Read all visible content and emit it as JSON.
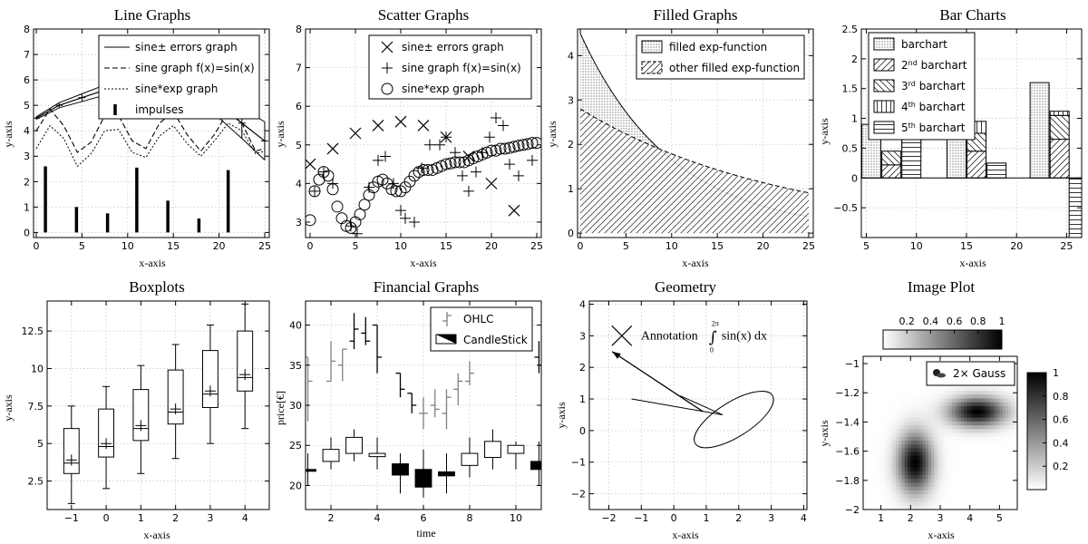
{
  "chart_data": [
    {
      "id": "p1",
      "type": "line",
      "title": "Line Graphs",
      "xlabel": "x-axis",
      "ylabel": "y-axis",
      "xlim": [
        -0.3,
        25.5
      ],
      "ylim": [
        -0.2,
        8
      ],
      "xticks": [
        0,
        5,
        10,
        15,
        20,
        25
      ],
      "yticks": [
        0,
        1,
        2,
        3,
        4,
        5,
        6,
        7,
        8
      ],
      "legend": {
        "placement": "top-right",
        "entries": [
          "sine± errors graph",
          "sine graph f(x)=sin(x)",
          "sine*exp graph",
          "impulses"
        ]
      },
      "series": [
        {
          "name": "sine± errors graph",
          "x": [
            0,
            2.5,
            5,
            7.5,
            10,
            12.5,
            15,
            17.5,
            20,
            22.5,
            25
          ],
          "y": [
            4.5,
            5.0,
            5.3,
            5.6,
            5.8,
            5.4,
            5.9,
            5.6,
            5.0,
            4.3,
            3.6
          ],
          "err": [
            0.05,
            0.1,
            0.15,
            0.2,
            0.25,
            0.3,
            0.35,
            0.4,
            0.5,
            0.6,
            0.75
          ]
        },
        {
          "name": "sine graph f(x)=sin(x)",
          "x": [
            0,
            1.5,
            3,
            4.5,
            6,
            7.5,
            9,
            10.5,
            12,
            13.5,
            15,
            16.5,
            18,
            19.5,
            21,
            22.5,
            24,
            25
          ],
          "y": [
            4.0,
            4.85,
            4.2,
            3.15,
            3.55,
            4.6,
            4.6,
            3.6,
            3.3,
            4.3,
            4.75,
            3.85,
            3.2,
            3.85,
            4.75,
            4.3,
            3.2,
            3.3
          ]
        },
        {
          "name": "sine*exp graph",
          "x": [
            0,
            1.5,
            3,
            4.5,
            6,
            7.5,
            9,
            10.5,
            12,
            13.5,
            15,
            16.5,
            18,
            19.5,
            21,
            22.5,
            24,
            25
          ],
          "y": [
            3.3,
            4.2,
            3.7,
            2.6,
            3.1,
            4.0,
            4.05,
            3.15,
            2.95,
            3.8,
            4.2,
            3.5,
            3.0,
            3.6,
            4.3,
            4.0,
            3.1,
            3.2
          ]
        },
        {
          "name": "impulses",
          "x": [
            1,
            4.4,
            7.8,
            11,
            14.4,
            17.8,
            21
          ],
          "y": [
            2.6,
            1.0,
            0.75,
            2.55,
            1.25,
            0.55,
            2.45
          ]
        }
      ]
    },
    {
      "id": "p2",
      "type": "scatter",
      "title": "Scatter Graphs",
      "xlabel": "x-axis",
      "ylabel": "y-axis",
      "xlim": [
        -0.5,
        25.5
      ],
      "ylim": [
        2.6,
        8
      ],
      "xticks": [
        0,
        5,
        10,
        15,
        20,
        25
      ],
      "yticks": [
        3,
        4,
        5,
        6,
        7,
        8
      ],
      "legend": {
        "placement": "top-right",
        "entries": [
          "sine± errors graph",
          "sine graph f(x)=sin(x)",
          "sine*exp graph"
        ]
      },
      "series": [
        {
          "name": "sine± errors graph",
          "marker": "x",
          "x": [
            0,
            2.5,
            5,
            7.5,
            10,
            12.5,
            15,
            17.5,
            20,
            22.5
          ],
          "y": [
            4.5,
            4.9,
            5.3,
            5.5,
            5.6,
            5.5,
            5.2,
            4.7,
            4.0,
            3.3
          ]
        },
        {
          "name": "sine graph f(x)=sin(x)",
          "marker": "+",
          "x": [
            0.5,
            1.5,
            2.5,
            4.5,
            5.2,
            6.5,
            7.5,
            8.3,
            9.2,
            10.0,
            10.5,
            11.5,
            12.3,
            13.2,
            14.3,
            15.0,
            16.0,
            16.8,
            17.5,
            18.3,
            19.0,
            19.8,
            20.5,
            21.3,
            22.0,
            23.0,
            24.5
          ],
          "y": [
            3.8,
            4.3,
            4.0,
            2.9,
            2.7,
            3.9,
            4.6,
            4.7,
            4.0,
            3.3,
            3.1,
            3.0,
            4.4,
            5.0,
            5.0,
            5.2,
            4.8,
            4.2,
            3.8,
            4.3,
            4.8,
            5.2,
            5.7,
            5.5,
            4.5,
            4.2,
            4.6
          ]
        },
        {
          "name": "sine*exp graph",
          "marker": "o",
          "x": [
            0,
            0.5,
            1,
            1.5,
            2,
            2.5,
            3,
            3.5,
            4,
            4.5,
            5,
            5.5,
            6,
            6.5,
            7,
            7.5,
            8,
            8.5,
            9,
            9.5,
            10,
            10.5,
            11,
            11.5,
            12,
            12.5,
            13,
            13.5,
            14,
            14.5,
            15,
            15.5,
            16,
            16.5,
            17,
            17.5,
            18,
            18.5,
            19,
            19.5,
            20,
            20.5,
            21,
            21.5,
            22,
            22.5,
            23,
            23.5,
            24,
            24.5,
            25
          ],
          "y": [
            3.05,
            3.8,
            4.1,
            4.3,
            4.2,
            3.85,
            3.4,
            3.1,
            2.9,
            2.85,
            3.0,
            3.2,
            3.45,
            3.7,
            3.9,
            4.05,
            4.1,
            4.0,
            3.85,
            3.8,
            3.8,
            3.9,
            4.05,
            4.2,
            4.3,
            4.35,
            4.35,
            4.35,
            4.4,
            4.45,
            4.5,
            4.52,
            4.55,
            4.55,
            4.55,
            4.6,
            4.65,
            4.7,
            4.75,
            4.8,
            4.85,
            4.85,
            4.9,
            4.9,
            4.92,
            4.95,
            4.98,
            5.0,
            5.02,
            5.05,
            5.05
          ]
        }
      ]
    },
    {
      "id": "p3",
      "type": "area",
      "title": "Filled Graphs",
      "xlabel": "x-axis",
      "ylabel": "y-axis",
      "xlim": [
        -0.3,
        25.5
      ],
      "ylim": [
        -0.1,
        4.6
      ],
      "xticks": [
        0,
        5,
        10,
        15,
        20,
        25
      ],
      "yticks": [
        0,
        1,
        2,
        3,
        4
      ],
      "legend": {
        "placement": "top-right",
        "entries": [
          "filled exp-function",
          "other filled exp-function"
        ]
      },
      "series": [
        {
          "name": "filled exp-function",
          "fill": "dots",
          "a": 4.5,
          "k": 0.1
        },
        {
          "name": "other filled exp-function",
          "fill": "hatch",
          "a": 2.8,
          "k": 0.045
        }
      ]
    },
    {
      "id": "p4",
      "type": "bar",
      "title": "Bar Charts",
      "xlabel": "x-axis",
      "ylabel": "y-axis",
      "xlim": [
        4.5,
        26.5
      ],
      "ylim": [
        -1.0,
        2.5
      ],
      "xticks": [
        5,
        10,
        15,
        20,
        25
      ],
      "yticks": [
        -0.5,
        0,
        0.5,
        1,
        1.5,
        2,
        2.5
      ],
      "legend": {
        "placement": "top-left",
        "entries": [
          "barchart",
          "2nd barchart",
          "3rd barchart",
          "4th barchart",
          "5th barchart"
        ]
      },
      "series": [
        {
          "name": "barchart",
          "pattern": "dots",
          "x": [
            5.5,
            14,
            22.3
          ],
          "bottom": [
            0,
            0,
            0
          ],
          "top": [
            0.9,
            0.85,
            1.6
          ]
        },
        {
          "name": "2nd barchart",
          "pattern": "fwd",
          "x": [
            7.5,
            16,
            24.3
          ],
          "bottom": [
            0,
            0,
            0
          ],
          "top": [
            0.22,
            0.45,
            0.65
          ]
        },
        {
          "name": "3rd barchart",
          "pattern": "back",
          "x": [
            7.5,
            16,
            24.3
          ],
          "bottom": [
            0.22,
            0.45,
            0.65
          ],
          "top": [
            0.45,
            0.75,
            1.05
          ]
        },
        {
          "name": "4th barchart",
          "pattern": "vert",
          "x": [
            9.5,
            16,
            24.3
          ],
          "bottom": [
            0.45,
            0.75,
            1.05
          ],
          "top": [
            0.75,
            0.95,
            1.12
          ]
        },
        {
          "name": "5th barchart",
          "pattern": "horiz",
          "x": [
            9.5,
            18,
            26.2
          ],
          "bottom": [
            0,
            0,
            0
          ],
          "top": [
            0.7,
            0.25,
            -1.0
          ]
        }
      ]
    },
    {
      "id": "p5",
      "type": "boxplot",
      "title": "Boxplots",
      "xlabel": "x-axis",
      "ylabel": "y-axis",
      "xlim": [
        -1.7,
        4.7
      ],
      "ylim": [
        0.6,
        14.5
      ],
      "xticks": [
        -1,
        0,
        1,
        2,
        3,
        4
      ],
      "yticks": [
        2.5,
        5,
        7.5,
        10,
        12.5
      ],
      "boxes": [
        {
          "x": -1,
          "min": 1.0,
          "q1": 3.0,
          "median": 3.7,
          "mean": 3.9,
          "q3": 6.0,
          "max": 7.5
        },
        {
          "x": 0,
          "min": 2.0,
          "q1": 4.1,
          "median": 4.8,
          "mean": 5.0,
          "q3": 7.3,
          "max": 8.8
        },
        {
          "x": 1,
          "min": 3.0,
          "q1": 5.2,
          "median": 6.0,
          "mean": 6.2,
          "q3": 8.6,
          "max": 10.2
        },
        {
          "x": 2,
          "min": 4.0,
          "q1": 6.3,
          "median": 7.1,
          "mean": 7.3,
          "q3": 9.9,
          "max": 11.6
        },
        {
          "x": 3,
          "min": 5.0,
          "q1": 7.4,
          "median": 8.3,
          "mean": 8.5,
          "q3": 11.2,
          "max": 12.9
        },
        {
          "x": 4,
          "min": 6.0,
          "q1": 8.5,
          "median": 9.4,
          "mean": 9.6,
          "q3": 12.5,
          "max": 14.3
        }
      ]
    },
    {
      "id": "p6",
      "type": "financial",
      "title": "Financial Graphs",
      "xlabel": "time",
      "ylabel": "price[€]",
      "xlim": [
        0.9,
        11.1
      ],
      "ylim": [
        17,
        43
      ],
      "xticks": [
        2,
        4,
        6,
        8,
        10
      ],
      "yticks": [
        20,
        25,
        30,
        35,
        40
      ],
      "legend": {
        "placement": "top-right",
        "entries": [
          "OHLC",
          "CandleStick"
        ]
      },
      "ohlc": [
        {
          "t": 1,
          "o": 36,
          "h": 36,
          "l": 28,
          "c": 33,
          "color": "#808080"
        },
        {
          "t": 2,
          "o": 33,
          "h": 38,
          "l": 33,
          "c": 35.5,
          "color": "#808080"
        },
        {
          "t": 2.5,
          "o": 35,
          "h": 37,
          "l": 33,
          "c": 37,
          "color": "#808080"
        },
        {
          "t": 3,
          "o": 38,
          "h": 41.5,
          "l": 37,
          "c": 39.5,
          "color": "#000000"
        },
        {
          "t": 3.5,
          "o": 39,
          "h": 41,
          "l": 37.5,
          "c": 38,
          "color": "#000000"
        },
        {
          "t": 4,
          "o": 40,
          "h": 40,
          "l": 34,
          "c": 36,
          "color": "#000000"
        },
        {
          "t": 5,
          "o": 34,
          "h": 34,
          "l": 31,
          "c": 32,
          "color": "#000000"
        },
        {
          "t": 5.5,
          "o": 31.5,
          "h": 31.5,
          "l": 29,
          "c": 30,
          "color": "#000000"
        },
        {
          "t": 6,
          "o": 29,
          "h": 31,
          "l": 27,
          "c": 29,
          "color": "#808080"
        },
        {
          "t": 6.5,
          "o": 30,
          "h": 32,
          "l": 28.5,
          "c": 29.5,
          "color": "#808080"
        },
        {
          "t": 7,
          "o": 29,
          "h": 32,
          "l": 27,
          "c": 31,
          "color": "#808080"
        },
        {
          "t": 7.5,
          "o": 32,
          "h": 34,
          "l": 30,
          "c": 33,
          "color": "#808080"
        },
        {
          "t": 8,
          "o": 33,
          "h": 35.5,
          "l": 32.5,
          "c": 34,
          "color": "#808080"
        },
        {
          "t": 11,
          "o": 36,
          "h": 38,
          "l": 34,
          "c": 35,
          "color": "#000000"
        }
      ],
      "candles": [
        {
          "t": 1,
          "o": 22,
          "h": 24,
          "l": 20,
          "c": 22,
          "filled": true
        },
        {
          "t": 2,
          "o": 23,
          "h": 26,
          "l": 22,
          "c": 24.5,
          "filled": false
        },
        {
          "t": 3,
          "o": 24,
          "h": 27,
          "l": 23,
          "c": 26,
          "filled": false
        },
        {
          "t": 4,
          "o": 23.6,
          "h": 26,
          "l": 22,
          "c": 24,
          "filled": false
        },
        {
          "t": 5,
          "o": 22.7,
          "h": 24,
          "l": 19,
          "c": 21.3,
          "filled": true
        },
        {
          "t": 6,
          "o": 22,
          "h": 24.5,
          "l": 18.5,
          "c": 19.8,
          "filled": true
        },
        {
          "t": 7,
          "o": 21.2,
          "h": 24,
          "l": 19,
          "c": 21.7,
          "filled": true
        },
        {
          "t": 8,
          "o": 22.5,
          "h": 26,
          "l": 21,
          "c": 24,
          "filled": false
        },
        {
          "t": 9,
          "o": 23.5,
          "h": 27,
          "l": 22,
          "c": 25.5,
          "filled": false
        },
        {
          "t": 10,
          "o": 24,
          "h": 25.5,
          "l": 22,
          "c": 25,
          "filled": false
        },
        {
          "t": 11,
          "o": 23,
          "h": 25.5,
          "l": 20,
          "c": 22,
          "filled": true
        }
      ]
    },
    {
      "id": "p7",
      "type": "geometry",
      "title": "Geometry",
      "xlabel": "x-axis",
      "ylabel": "y-axis",
      "xlim": [
        -2.6,
        4.1
      ],
      "ylim": [
        -2.5,
        4.1
      ],
      "xticks": [
        -2,
        -1,
        0,
        1,
        2,
        3,
        4
      ],
      "yticks": [
        -2,
        -1,
        0,
        1,
        2,
        3,
        4
      ],
      "annotation": {
        "text": "Annotation",
        "math_f": "sin(x) dx",
        "upper": "2π",
        "lower": "0"
      },
      "ellipse": {
        "cx": 1.85,
        "cy": 0.35,
        "rx": 1.4,
        "ry": 0.55,
        "angle_deg": -32
      },
      "shape": [
        [
          -1.3,
          1.0
        ],
        [
          1.5,
          0.5
        ],
        [
          0.2,
          1.1
        ]
      ],
      "arrow": {
        "from": [
          0.9,
          0.6
        ],
        "to": [
          -1.9,
          2.5
        ]
      },
      "cross": {
        "x": -1.6,
        "y": 3.0
      }
    },
    {
      "id": "p8",
      "type": "heatmap",
      "title": "Image Plot",
      "xlabel": "x-axis",
      "ylabel": "y-axis",
      "xlim": [
        0.4,
        5.6
      ],
      "ylim": [
        -2.0,
        -0.95
      ],
      "xticks": [
        1,
        2,
        3,
        4,
        5
      ],
      "yticks": [
        -2,
        -1.8,
        -1.6,
        -1.4,
        -1.2,
        -1
      ],
      "colorbar_top_ticks": [
        0.2,
        0.4,
        0.6,
        0.8,
        1
      ],
      "colorbar_right_ticks": [
        0.2,
        0.4,
        0.6,
        0.8,
        1
      ],
      "legend": {
        "placement": "top-right",
        "entries": [
          "2× Gauss"
        ]
      },
      "gaussians": [
        {
          "x": 2.15,
          "y": -1.68,
          "sx": 0.4,
          "sy": 0.14,
          "amp": 1.0
        },
        {
          "x": 4.25,
          "y": -1.33,
          "sx": 0.65,
          "sy": 0.07,
          "amp": 1.0
        }
      ]
    }
  ]
}
